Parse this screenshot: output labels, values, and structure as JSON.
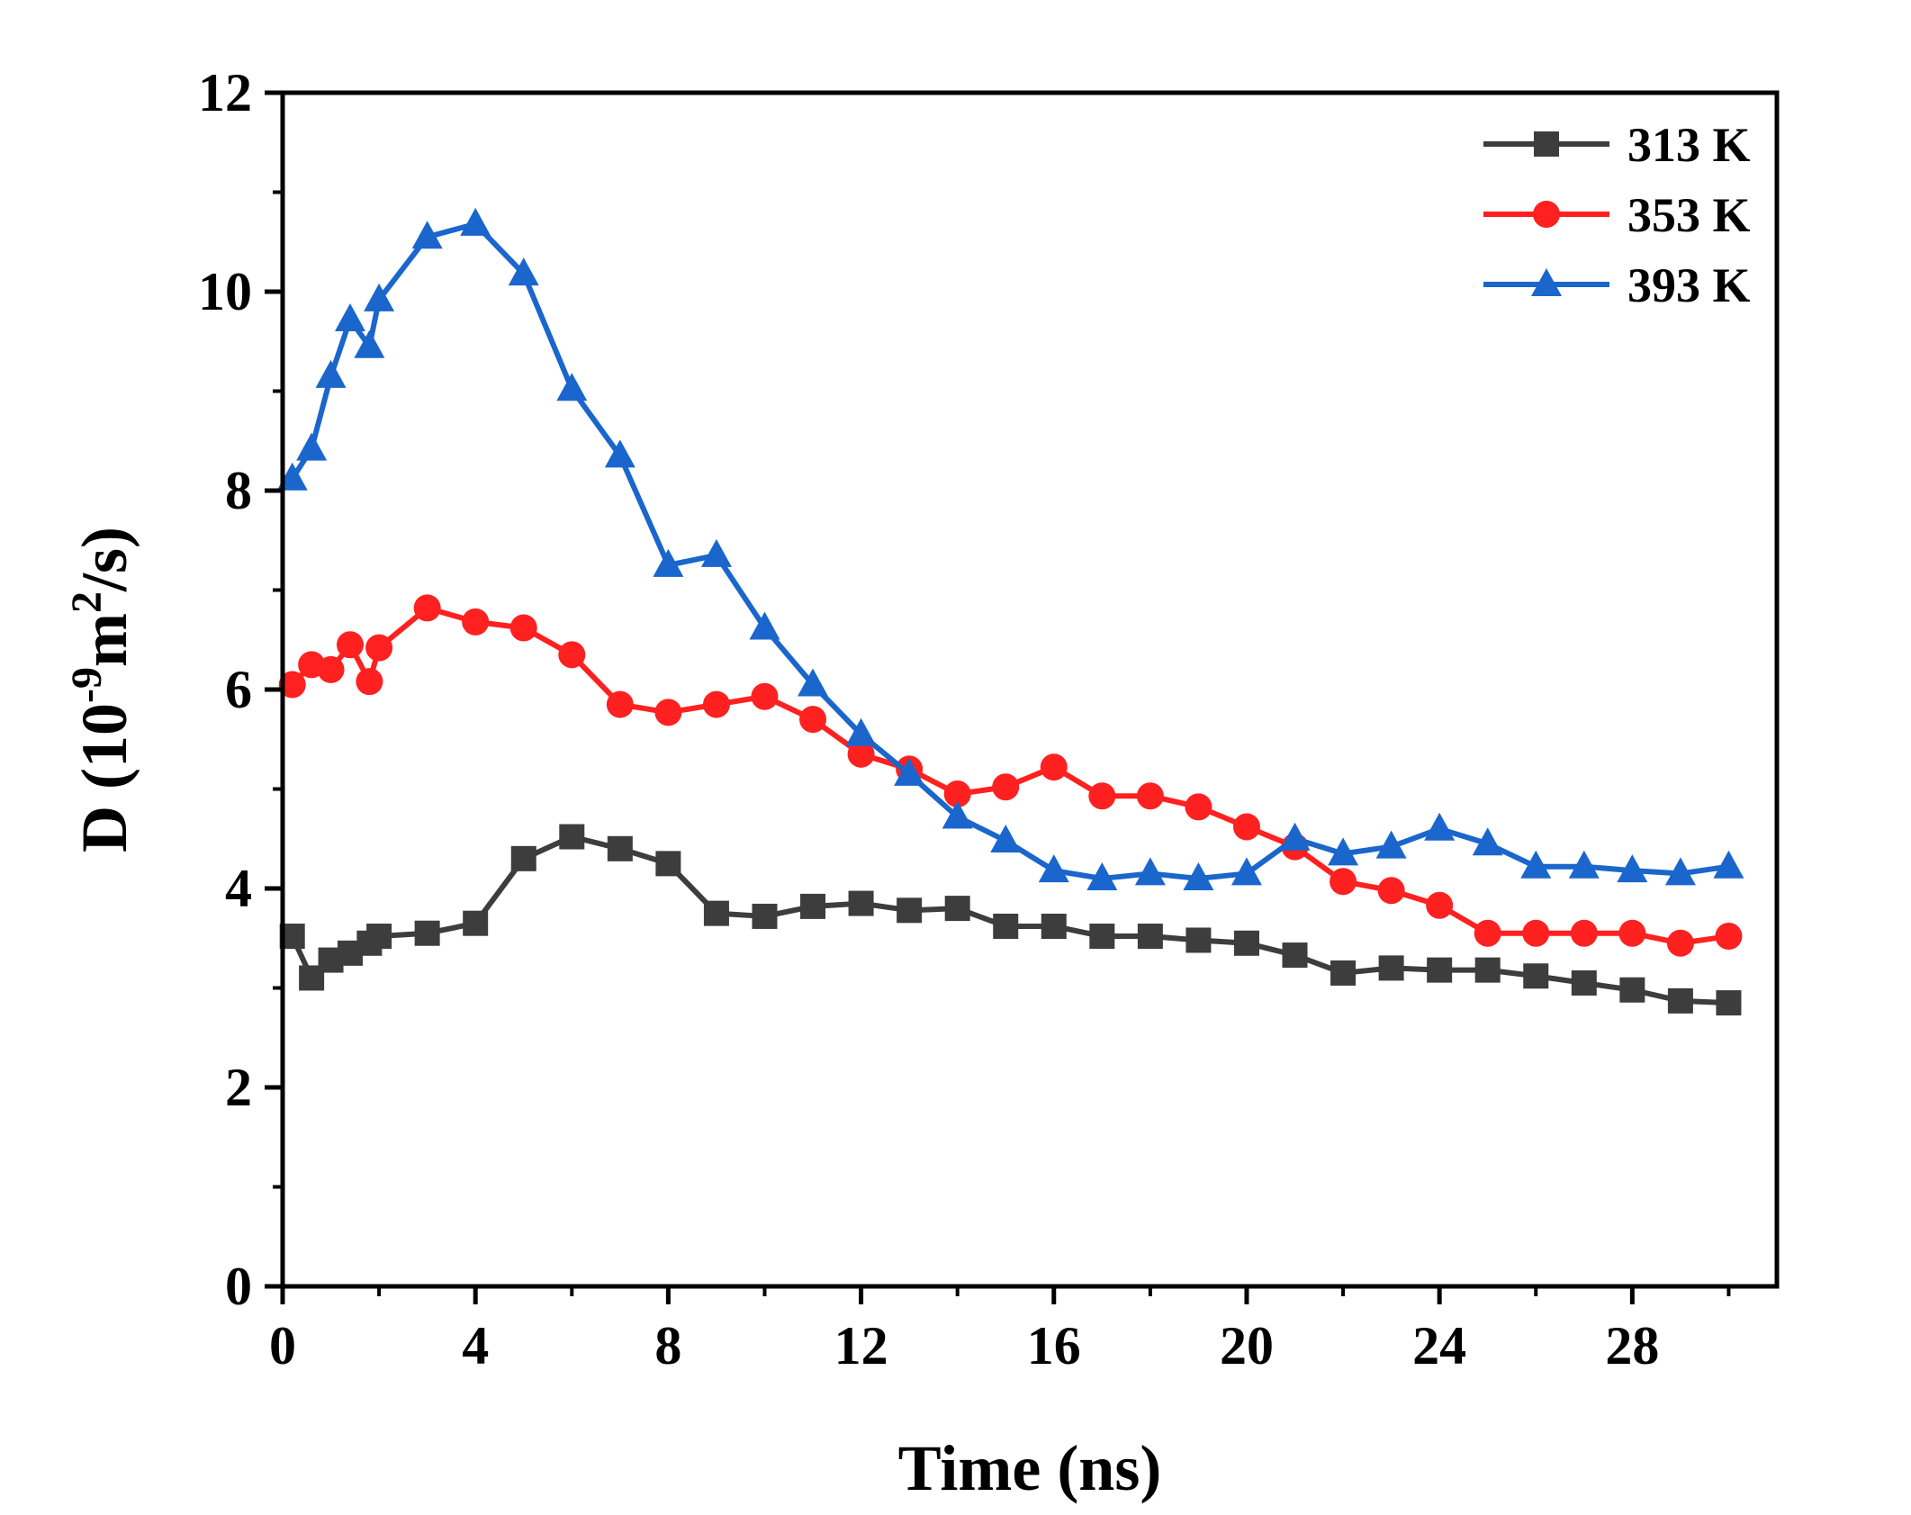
{
  "chart_data": {
    "type": "line",
    "title": "",
    "xlabel": "Time (ns)",
    "ylabel": "D (10-9m2/s)",
    "ylabel_parts": {
      "prefix": "D (10",
      "exp1": "-9",
      "mid": "m",
      "exp2": "2",
      "suffix": "/s)"
    },
    "xlim": [
      0,
      31
    ],
    "ylim": [
      0,
      12
    ],
    "xticks": [
      0,
      4,
      8,
      12,
      16,
      20,
      24,
      28
    ],
    "yticks": [
      0,
      2,
      4,
      6,
      8,
      10,
      12
    ],
    "grid": false,
    "legend_position": "top-right",
    "x": [
      0.2,
      0.6,
      1.0,
      1.4,
      1.8,
      2,
      3,
      4,
      5,
      6,
      7,
      8,
      9,
      10,
      11,
      12,
      13,
      14,
      15,
      16,
      17,
      18,
      19,
      20,
      21,
      22,
      23,
      24,
      25,
      26,
      27,
      28,
      29,
      30
    ],
    "series": [
      {
        "name": "313 K",
        "color": "#3d3d3d",
        "marker": "square",
        "values": [
          3.52,
          3.1,
          3.28,
          3.35,
          3.45,
          3.52,
          3.55,
          3.65,
          4.3,
          4.52,
          4.4,
          4.25,
          3.75,
          3.72,
          3.82,
          3.85,
          3.78,
          3.8,
          3.62,
          3.62,
          3.52,
          3.52,
          3.48,
          3.45,
          3.33,
          3.15,
          3.2,
          3.18,
          3.18,
          3.12,
          3.05,
          2.98,
          2.87,
          2.85
        ]
      },
      {
        "name": "353 K",
        "color": "#ff2020",
        "marker": "circle",
        "values": [
          6.05,
          6.25,
          6.2,
          6.45,
          6.08,
          6.42,
          6.82,
          6.68,
          6.62,
          6.35,
          5.85,
          5.77,
          5.85,
          5.93,
          5.7,
          5.35,
          5.2,
          4.95,
          5.02,
          5.22,
          4.93,
          4.93,
          4.82,
          4.62,
          4.42,
          4.07,
          3.98,
          3.83,
          3.55,
          3.55,
          3.55,
          3.55,
          3.45,
          3.52
        ]
      },
      {
        "name": "393 K",
        "color": "#1a66cc",
        "marker": "triangle",
        "values": [
          8.12,
          8.42,
          9.15,
          9.72,
          9.45,
          9.92,
          10.55,
          10.68,
          10.18,
          9.02,
          8.35,
          7.25,
          7.35,
          6.62,
          6.05,
          5.55,
          5.15,
          4.72,
          4.48,
          4.18,
          4.1,
          4.15,
          4.1,
          4.15,
          4.5,
          4.35,
          4.42,
          4.6,
          4.45,
          4.22,
          4.22,
          4.18,
          4.15,
          4.22
        ]
      }
    ]
  }
}
